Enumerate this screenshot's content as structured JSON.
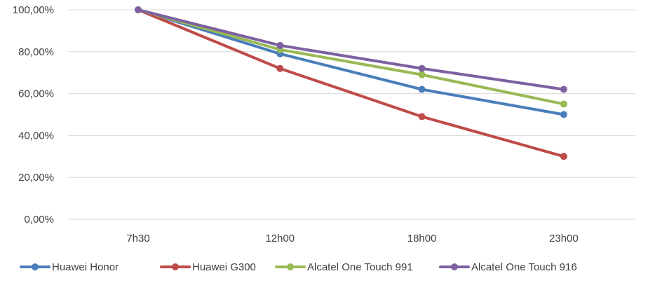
{
  "chart_data": {
    "type": "line",
    "categories": [
      "7h30",
      "12h00",
      "18h00",
      "23h00"
    ],
    "ylim": [
      0,
      100
    ],
    "yticks": [
      0,
      20,
      40,
      60,
      80,
      100
    ],
    "ytick_labels": [
      "0,00%",
      "20,00%",
      "40,00%",
      "60,00%",
      "80,00%",
      "100,00%"
    ],
    "grid": true,
    "legend_position": "bottom",
    "series": [
      {
        "name": "Huawei Honor",
        "color": "#4A7EBB",
        "values": [
          100,
          79,
          62,
          50
        ]
      },
      {
        "name": "Huawei G300",
        "color": "#BE4B48",
        "values": [
          100,
          72,
          49,
          30
        ]
      },
      {
        "name": "Alcatel One Touch 991",
        "color": "#98B954",
        "values": [
          100,
          81,
          69,
          55
        ]
      },
      {
        "name": "Alcatel One Touch 916",
        "color": "#7D60A0",
        "values": [
          100,
          83,
          72,
          62
        ]
      }
    ]
  }
}
